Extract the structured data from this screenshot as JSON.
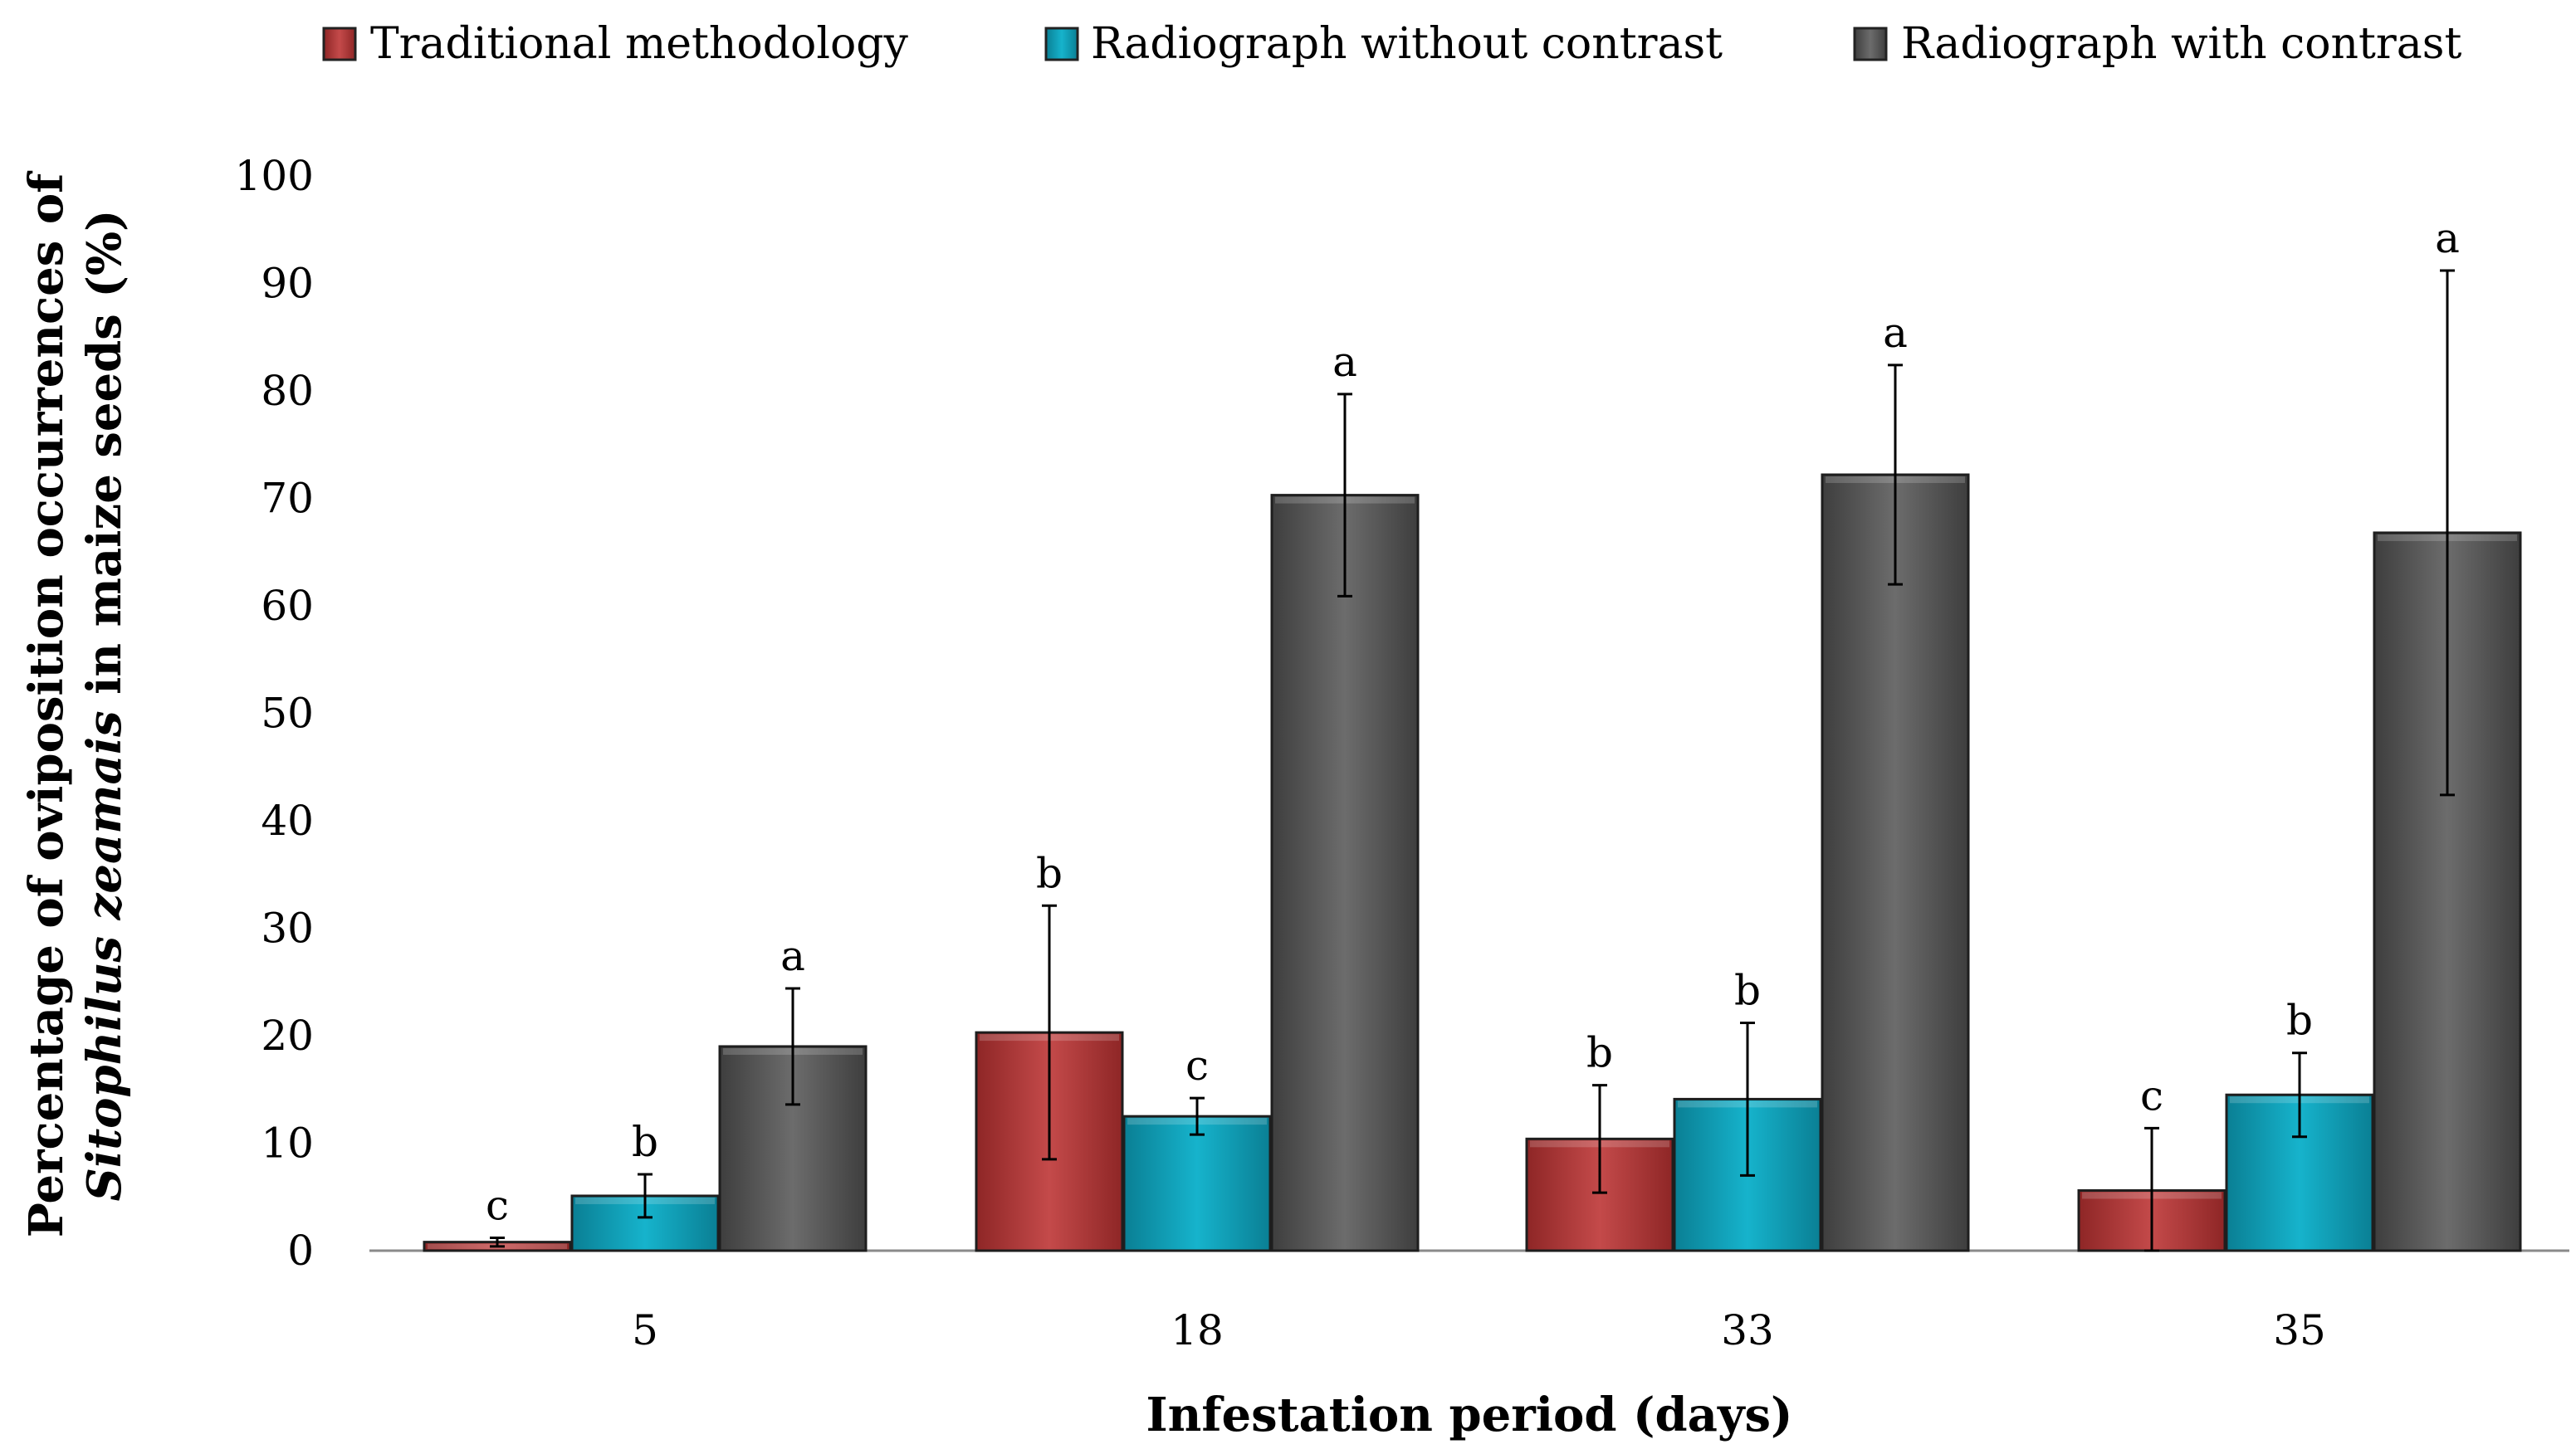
{
  "chart_data": {
    "type": "bar",
    "categories": [
      "5",
      "18",
      "33",
      "35"
    ],
    "series": [
      {
        "name": "Traditional methodology",
        "color": "#b63a3a",
        "values": [
          0.8,
          20.3,
          10.4,
          5.6
        ],
        "errors": [
          0.4,
          11.8,
          5.0,
          5.8
        ],
        "letters": [
          "c",
          "b",
          "b",
          "c"
        ]
      },
      {
        "name": "Radiograph without contrast",
        "color": "#0f9fb8",
        "values": [
          5.1,
          12.5,
          14.1,
          14.5
        ],
        "errors": [
          2.0,
          1.7,
          7.1,
          3.9
        ],
        "letters": [
          "b",
          "c",
          "b",
          "b"
        ]
      },
      {
        "name": "Radiograph with contrast",
        "color": "#5d5d5d",
        "values": [
          19.0,
          70.3,
          72.2,
          66.8
        ],
        "errors": [
          5.4,
          9.4,
          10.2,
          24.4
        ],
        "letters": [
          "a",
          "a",
          "a",
          "a"
        ]
      }
    ],
    "ylim": [
      0,
      100
    ],
    "yticks": [
      "0",
      "10",
      "20",
      "30",
      "40",
      "50",
      "60",
      "70",
      "80",
      "90",
      "100"
    ],
    "xlabel": "Infestation period (days)",
    "ylabel_line1": "Percentage of oviposition occurrences of",
    "ylabel_line2_italic": "Sitophilus zeamais",
    "ylabel_line2_rest": " in maize seeds (%)",
    "legend": "top",
    "grid": false
  }
}
